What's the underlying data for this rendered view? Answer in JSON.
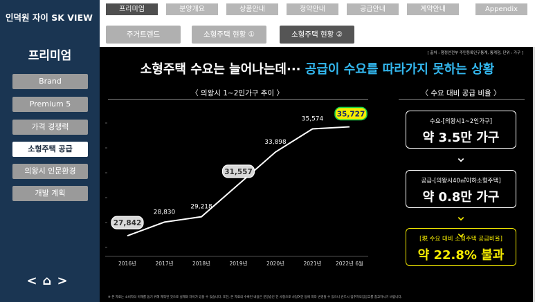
{
  "sidebar": {
    "brand": "인덕원 자이 SK VIEW",
    "title": "프리미엄",
    "items": [
      {
        "label": "Brand"
      },
      {
        "label": "Premium 5"
      },
      {
        "label": "가격 경쟁력"
      },
      {
        "label": "소형주택 공급"
      },
      {
        "label": "의왕시 인문환경"
      },
      {
        "label": "개발 계획"
      }
    ],
    "nav": "< ⌂ >"
  },
  "top_tabs": [
    {
      "label": "프리미엄"
    },
    {
      "label": "분양개요"
    },
    {
      "label": "상품안내"
    },
    {
      "label": "청약안내"
    },
    {
      "label": "공급안내"
    },
    {
      "label": "계약안내"
    },
    {
      "label": "Appendix"
    }
  ],
  "sub_tabs": [
    {
      "label": "주거트렌드"
    },
    {
      "label": "소형주택 현황 ①"
    },
    {
      "label": "소형주택 현황 ②"
    }
  ],
  "main": {
    "source": "[ 출처 : 행정안전부 주민등록인구통계, 통계청, 단위 : 가구 ]",
    "headline_white": "소형주택 수요는 늘어나는데··· ",
    "headline_cyan": "공급이 수요를 따라가지 못하는 상황",
    "left_title": "〈 의왕시 1~2인가구 추이 〉",
    "right_title": "〈 수요 대비 공급 비율 〉",
    "demand_label": "수요-[의왕시1~2인가구]",
    "demand_value": "약 3.5만 가구",
    "supply_label": "공급-[의왕시40㎡이하소형주택]",
    "supply_value": "약 0.8만 가구",
    "ratio_label": "[現 수요 대비 소형주택 공급비율]",
    "ratio_value": "약 22.8% 불과",
    "footnote": "※ 본 자료는 소비자의 이해를 돕기 위해 제작된 것으로 실제와 차이가 있을 수 있습니다. 또한, 본 자료의 수록된 내용은 분양승인 전 사항으로 사업여건 등에 따라 변경될 수 있으니 반드시 입주자모집공고를 참고하시기 바랍니다."
  },
  "colors": {
    "sidebar_bg": "#1a3552",
    "accent_cyan": "#33b7ee",
    "highlight_yellow": "#f5eb00",
    "highlight_green": "#16d04a"
  },
  "chart_data": {
    "type": "line",
    "categories": [
      "2016년",
      "2017년",
      "2018년",
      "2019년",
      "2020년",
      "2021년",
      "2022년 6월"
    ],
    "values": [
      27842,
      28830,
      29218,
      31557,
      33898,
      35574,
      35727
    ],
    "value_labels": [
      "27,842",
      "28,830",
      "29,218",
      "31,557",
      "33,898",
      "35,574",
      "35,727"
    ],
    "title": "〈 의왕시 1~2인가구 추이 〉",
    "xlabel": "",
    "ylabel": "",
    "ylim": [
      26500,
      37500
    ],
    "grid": false,
    "highlighted": [
      0,
      3
    ],
    "highlighted_last": 6
  }
}
